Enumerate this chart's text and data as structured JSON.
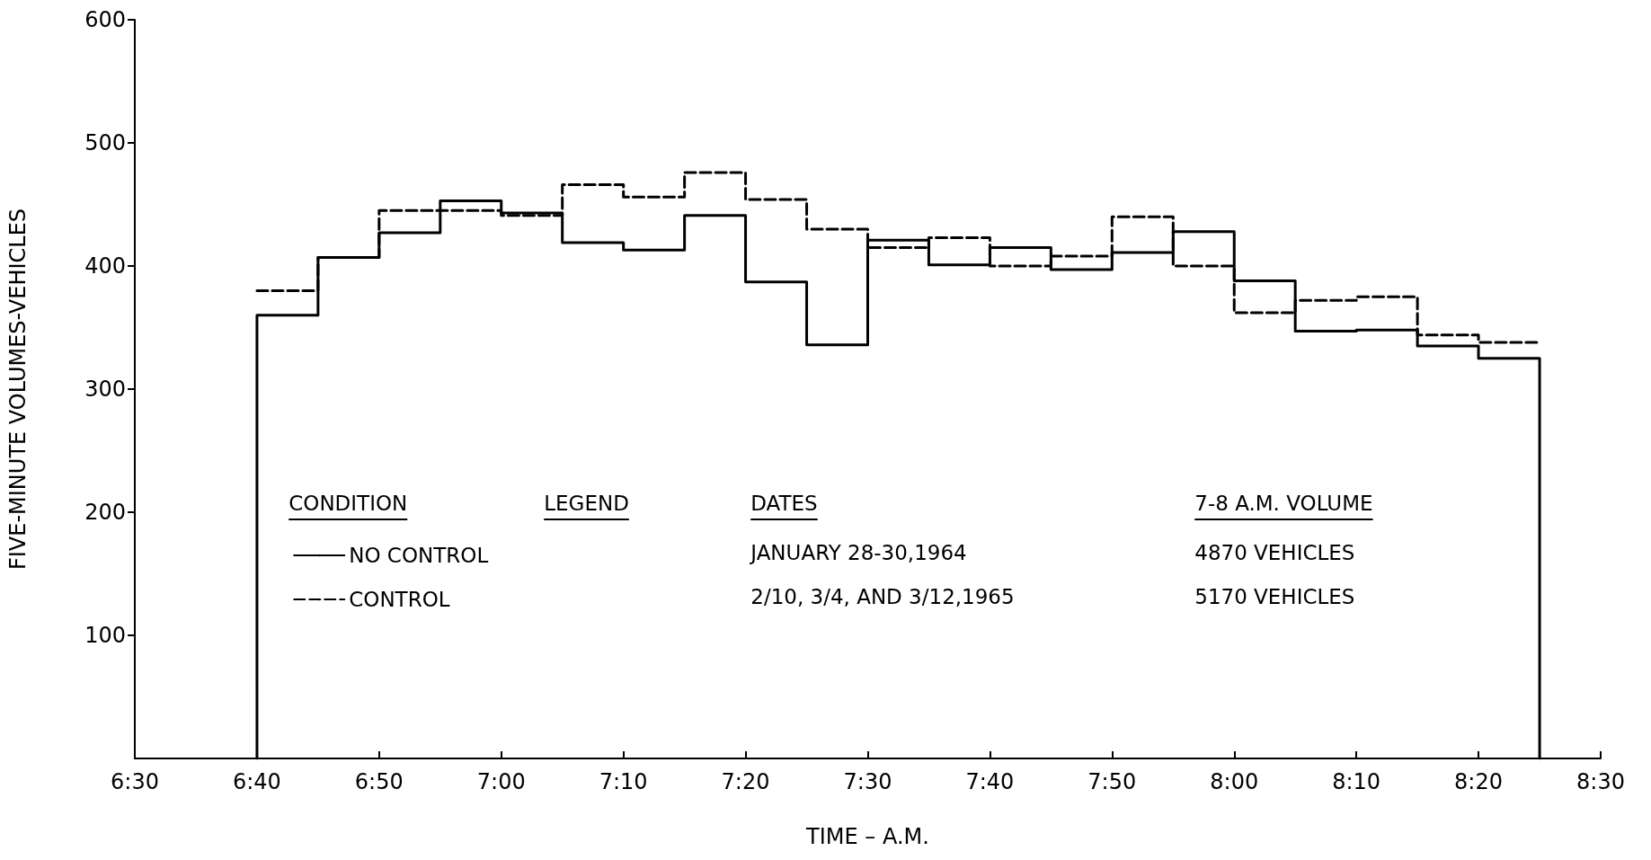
{
  "chart_data": {
    "type": "step",
    "xlabel": "TIME – A.M.",
    "ylabel": "FIVE-MINUTE VOLUMES-VEHICLES",
    "xlim": [
      6.5,
      8.5
    ],
    "xticks": [
      {
        "value": 6.5,
        "label": "6:30"
      },
      {
        "value": 6.6667,
        "label": "6:40"
      },
      {
        "value": 6.8333,
        "label": "6:50"
      },
      {
        "value": 7,
        "label": "7:00"
      },
      {
        "value": 7.1667,
        "label": "7:10"
      },
      {
        "value": 7.3333,
        "label": "7:20"
      },
      {
        "value": 7.5,
        "label": "7:30"
      },
      {
        "value": 7.6667,
        "label": "7:40"
      },
      {
        "value": 7.8333,
        "label": "7:50"
      },
      {
        "value": 8,
        "label": "8:00"
      },
      {
        "value": 8.1667,
        "label": "8:10"
      },
      {
        "value": 8.3333,
        "label": "8:20"
      },
      {
        "value": 8.5,
        "label": "8:30"
      }
    ],
    "ylim": [
      0,
      600
    ],
    "yticks": [
      100,
      200,
      300,
      400,
      500,
      600
    ],
    "grid": false,
    "legend": "center",
    "marker": "none",
    "legend_title": "LEGEND",
    "annotations": [
      "CONDITION",
      "DATES",
      "7-8 A.M. VOLUME",
      "JANUARY 28-30,1964",
      "4870 VEHICLES",
      "2/10, 3/4, AND 3/12,1965",
      "5170 VEHICLES"
    ],
    "series": [
      {
        "name": "NO CONTROL",
        "color": "#000000",
        "line_style": "solid",
        "x": [
          6.6667,
          6.6667,
          6.75,
          6.8333,
          6.9167,
          7,
          7.0833,
          7.1667,
          7.25,
          7.3333,
          7.4167,
          7.5,
          7.5833,
          7.6667,
          7.75,
          7.8333,
          7.9167,
          8,
          8.0833,
          8.1667,
          8.25,
          8.3333,
          8.4167,
          8.4167
        ],
        "values": [
          0,
          360,
          407,
          427,
          453,
          443,
          419,
          413,
          441,
          387,
          336,
          421,
          401,
          415,
          397,
          411,
          428,
          388,
          347,
          348,
          335,
          325,
          325,
          0
        ]
      },
      {
        "name": "CONTROL",
        "color": "#000000",
        "line_style": "dashed",
        "x": [
          6.6667,
          6.75,
          6.8333,
          6.9167,
          7,
          7.0833,
          7.1667,
          7.25,
          7.3333,
          7.4167,
          7.5,
          7.5833,
          7.6667,
          7.75,
          7.8333,
          7.9167,
          8,
          8.0833,
          8.1667,
          8.25,
          8.3333,
          8.4167
        ],
        "values": [
          380,
          407,
          445,
          445,
          441,
          466,
          456,
          476,
          454,
          430,
          415,
          423,
          400,
          408,
          440,
          400,
          362,
          372,
          375,
          344,
          338,
          338
        ]
      }
    ]
  }
}
